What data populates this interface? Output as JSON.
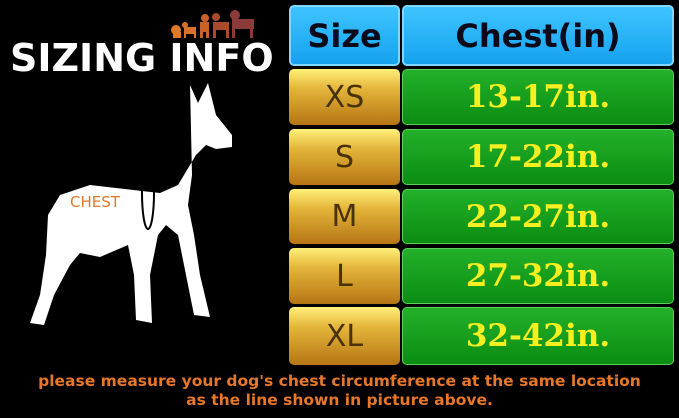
{
  "title": "SIZING INFO",
  "chest_label": "CHEST",
  "table": {
    "headers": [
      "Size",
      "Chest(in)"
    ],
    "header_color": "#1aa8f0",
    "rows": [
      {
        "size": "XS",
        "chest": "13-17in."
      },
      {
        "size": "S",
        "chest": "17-22in."
      },
      {
        "size": "M",
        "chest": "22-27in."
      },
      {
        "size": "L",
        "chest": "27-32in."
      },
      {
        "size": "XL",
        "chest": "32-42in."
      }
    ]
  },
  "note": [
    "please measure your dog's chest circumference at the same location",
    "as the line shown in picture above."
  ],
  "icons": [
    "dogs-logo-icon",
    "dog-silhouette-icon"
  ]
}
